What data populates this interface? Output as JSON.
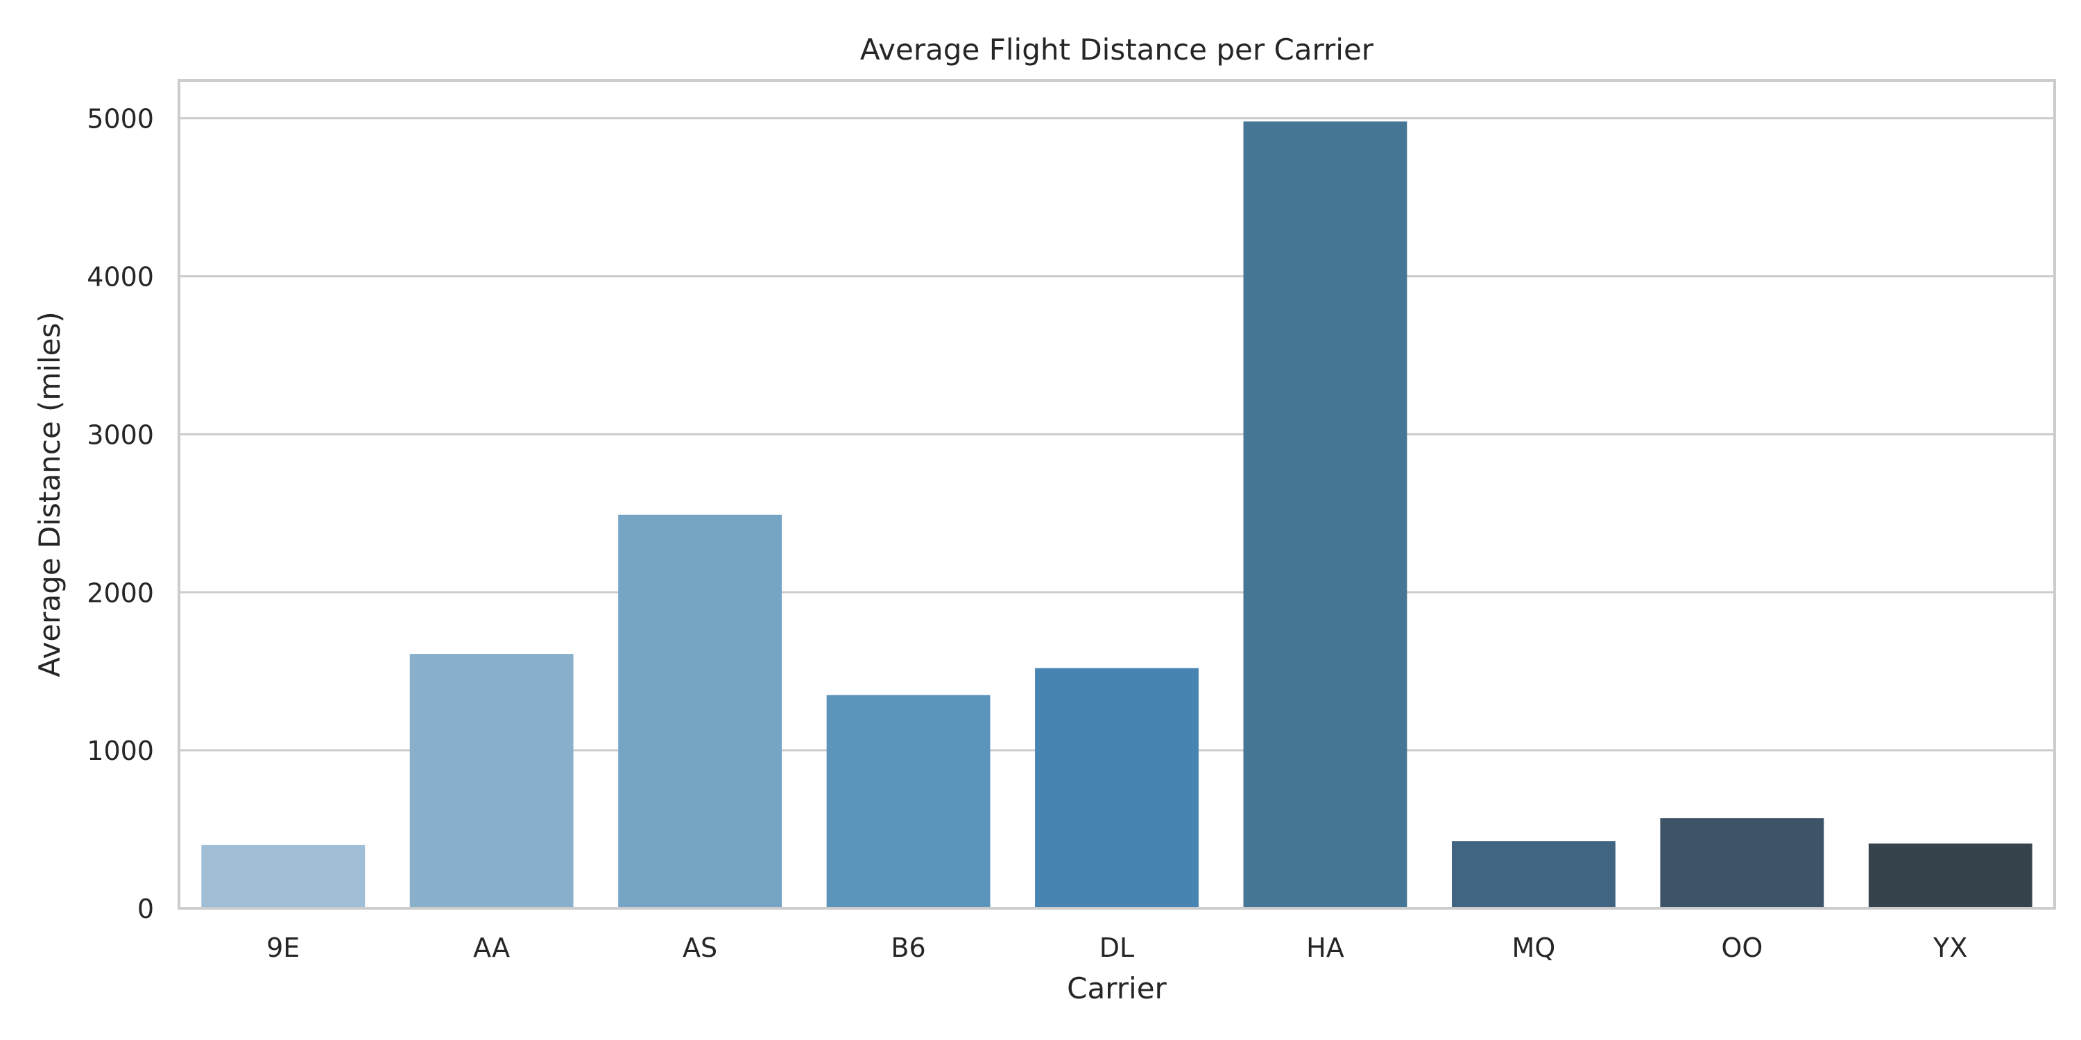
{
  "chart_data": {
    "type": "bar",
    "title": "Average Flight Distance per Carrier",
    "xlabel": "Carrier",
    "ylabel": "Average Distance (miles)",
    "categories": [
      "9E",
      "AA",
      "AS",
      "B6",
      "DL",
      "HA",
      "MQ",
      "OO",
      "YX"
    ],
    "values": [
      400,
      1610,
      2490,
      1350,
      1520,
      4980,
      425,
      570,
      410
    ],
    "colors": [
      "#a0bfd7",
      "#88b0cb",
      "#75a4c4",
      "#5d94bb",
      "#4884b1",
      "#457695",
      "#416482",
      "#3d5468",
      "#37434c"
    ],
    "ylim": [
      0,
      5240
    ],
    "yticks": [
      0,
      1000,
      2000,
      3000,
      4000,
      5000
    ],
    "grid": "horizontal",
    "legend": "none"
  }
}
